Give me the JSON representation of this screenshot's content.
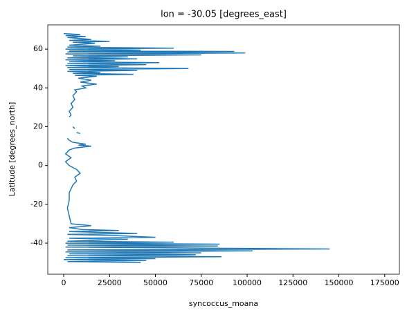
{
  "chart_data": {
    "type": "line",
    "title": "lon = -30.05 [degrees_east]",
    "xlabel": "syncoccus_moana",
    "ylabel": "Latitude [degrees_north]",
    "xlim": [
      -8700,
      183000
    ],
    "ylim": [
      -56,
      72.5
    ],
    "xticks": [
      0,
      25000,
      50000,
      75000,
      100000,
      125000,
      150000,
      175000
    ],
    "yticks": [
      -40,
      -20,
      0,
      20,
      40,
      60
    ],
    "series": [
      {
        "color": "#1f77b4",
        "x": [
          0,
          9000,
          1000,
          12000,
          2000,
          15000,
          3000,
          25000,
          5000,
          17000,
          3000,
          20000,
          2000,
          60000,
          1000,
          42000,
          3000,
          93000,
          2000,
          99000,
          1000,
          75000,
          5000,
          35000,
          2000,
          40000,
          1000,
          28000,
          3000,
          52000,
          2000,
          45000,
          1000,
          30000,
          2000,
          68000,
          3000,
          40000,
          2000,
          20000,
          5000,
          38000,
          6000,
          18000,
          8000,
          15000,
          9000,
          18000,
          10000,
          12000,
          6000,
          7000,
          5000,
          6000,
          4000,
          5000,
          3000,
          4000,
          3000,
          null,
          5000,
          6000,
          null,
          7000,
          9000,
          null,
          2000,
          3000,
          5000,
          12000,
          8000,
          15000,
          6000,
          3000,
          1000,
          4000,
          1000,
          3000,
          7000,
          9000,
          6000,
          7000,
          5000,
          3000,
          3000,
          2000,
          3000,
          4000,
          15000,
          3000,
          10000,
          30000,
          3000,
          40000,
          2000,
          25000,
          50000,
          3000,
          35000,
          2000,
          60000,
          1000,
          85000,
          2000,
          84000,
          1000,
          70000,
          145000,
          2000,
          103000,
          1000,
          75000,
          3000,
          72000,
          2000,
          86000,
          1000,
          50000,
          0,
          45000,
          2000,
          42000
        ],
        "values": [
          68,
          67.5,
          67,
          66.5,
          66,
          65,
          64.5,
          64,
          63.5,
          63,
          62,
          61.5,
          61,
          60.5,
          60,
          59.5,
          59,
          58.8,
          58.5,
          58,
          57.5,
          57,
          56.5,
          56,
          55.5,
          55,
          54.5,
          54,
          53.5,
          53,
          52.5,
          52,
          51.5,
          51,
          50.5,
          50,
          49.5,
          49,
          48.5,
          48,
          47.5,
          47,
          46.5,
          46,
          45,
          44,
          43,
          42,
          41,
          40,
          39,
          38,
          36,
          34,
          32,
          30,
          28,
          26,
          25,
          null,
          20,
          19,
          null,
          17,
          16.5,
          null,
          14,
          13,
          12,
          11,
          10.5,
          10,
          9,
          8,
          6,
          4,
          2,
          0,
          -2,
          -4,
          -6,
          -8,
          -10,
          -14,
          -18,
          -22,
          -26,
          -30,
          -31,
          -32,
          -33,
          -33.5,
          -34,
          -35,
          -35.5,
          -36,
          -37,
          -37.5,
          -38,
          -39,
          -39.5,
          -40,
          -40.5,
          -41,
          -41.5,
          -42,
          -42.5,
          -43,
          -43.5,
          -44,
          -44.5,
          -45,
          -45.5,
          -46,
          -46.5,
          -47,
          -47.5,
          -48,
          -48.5,
          -49,
          -49.5,
          -50
        ]
      }
    ]
  }
}
